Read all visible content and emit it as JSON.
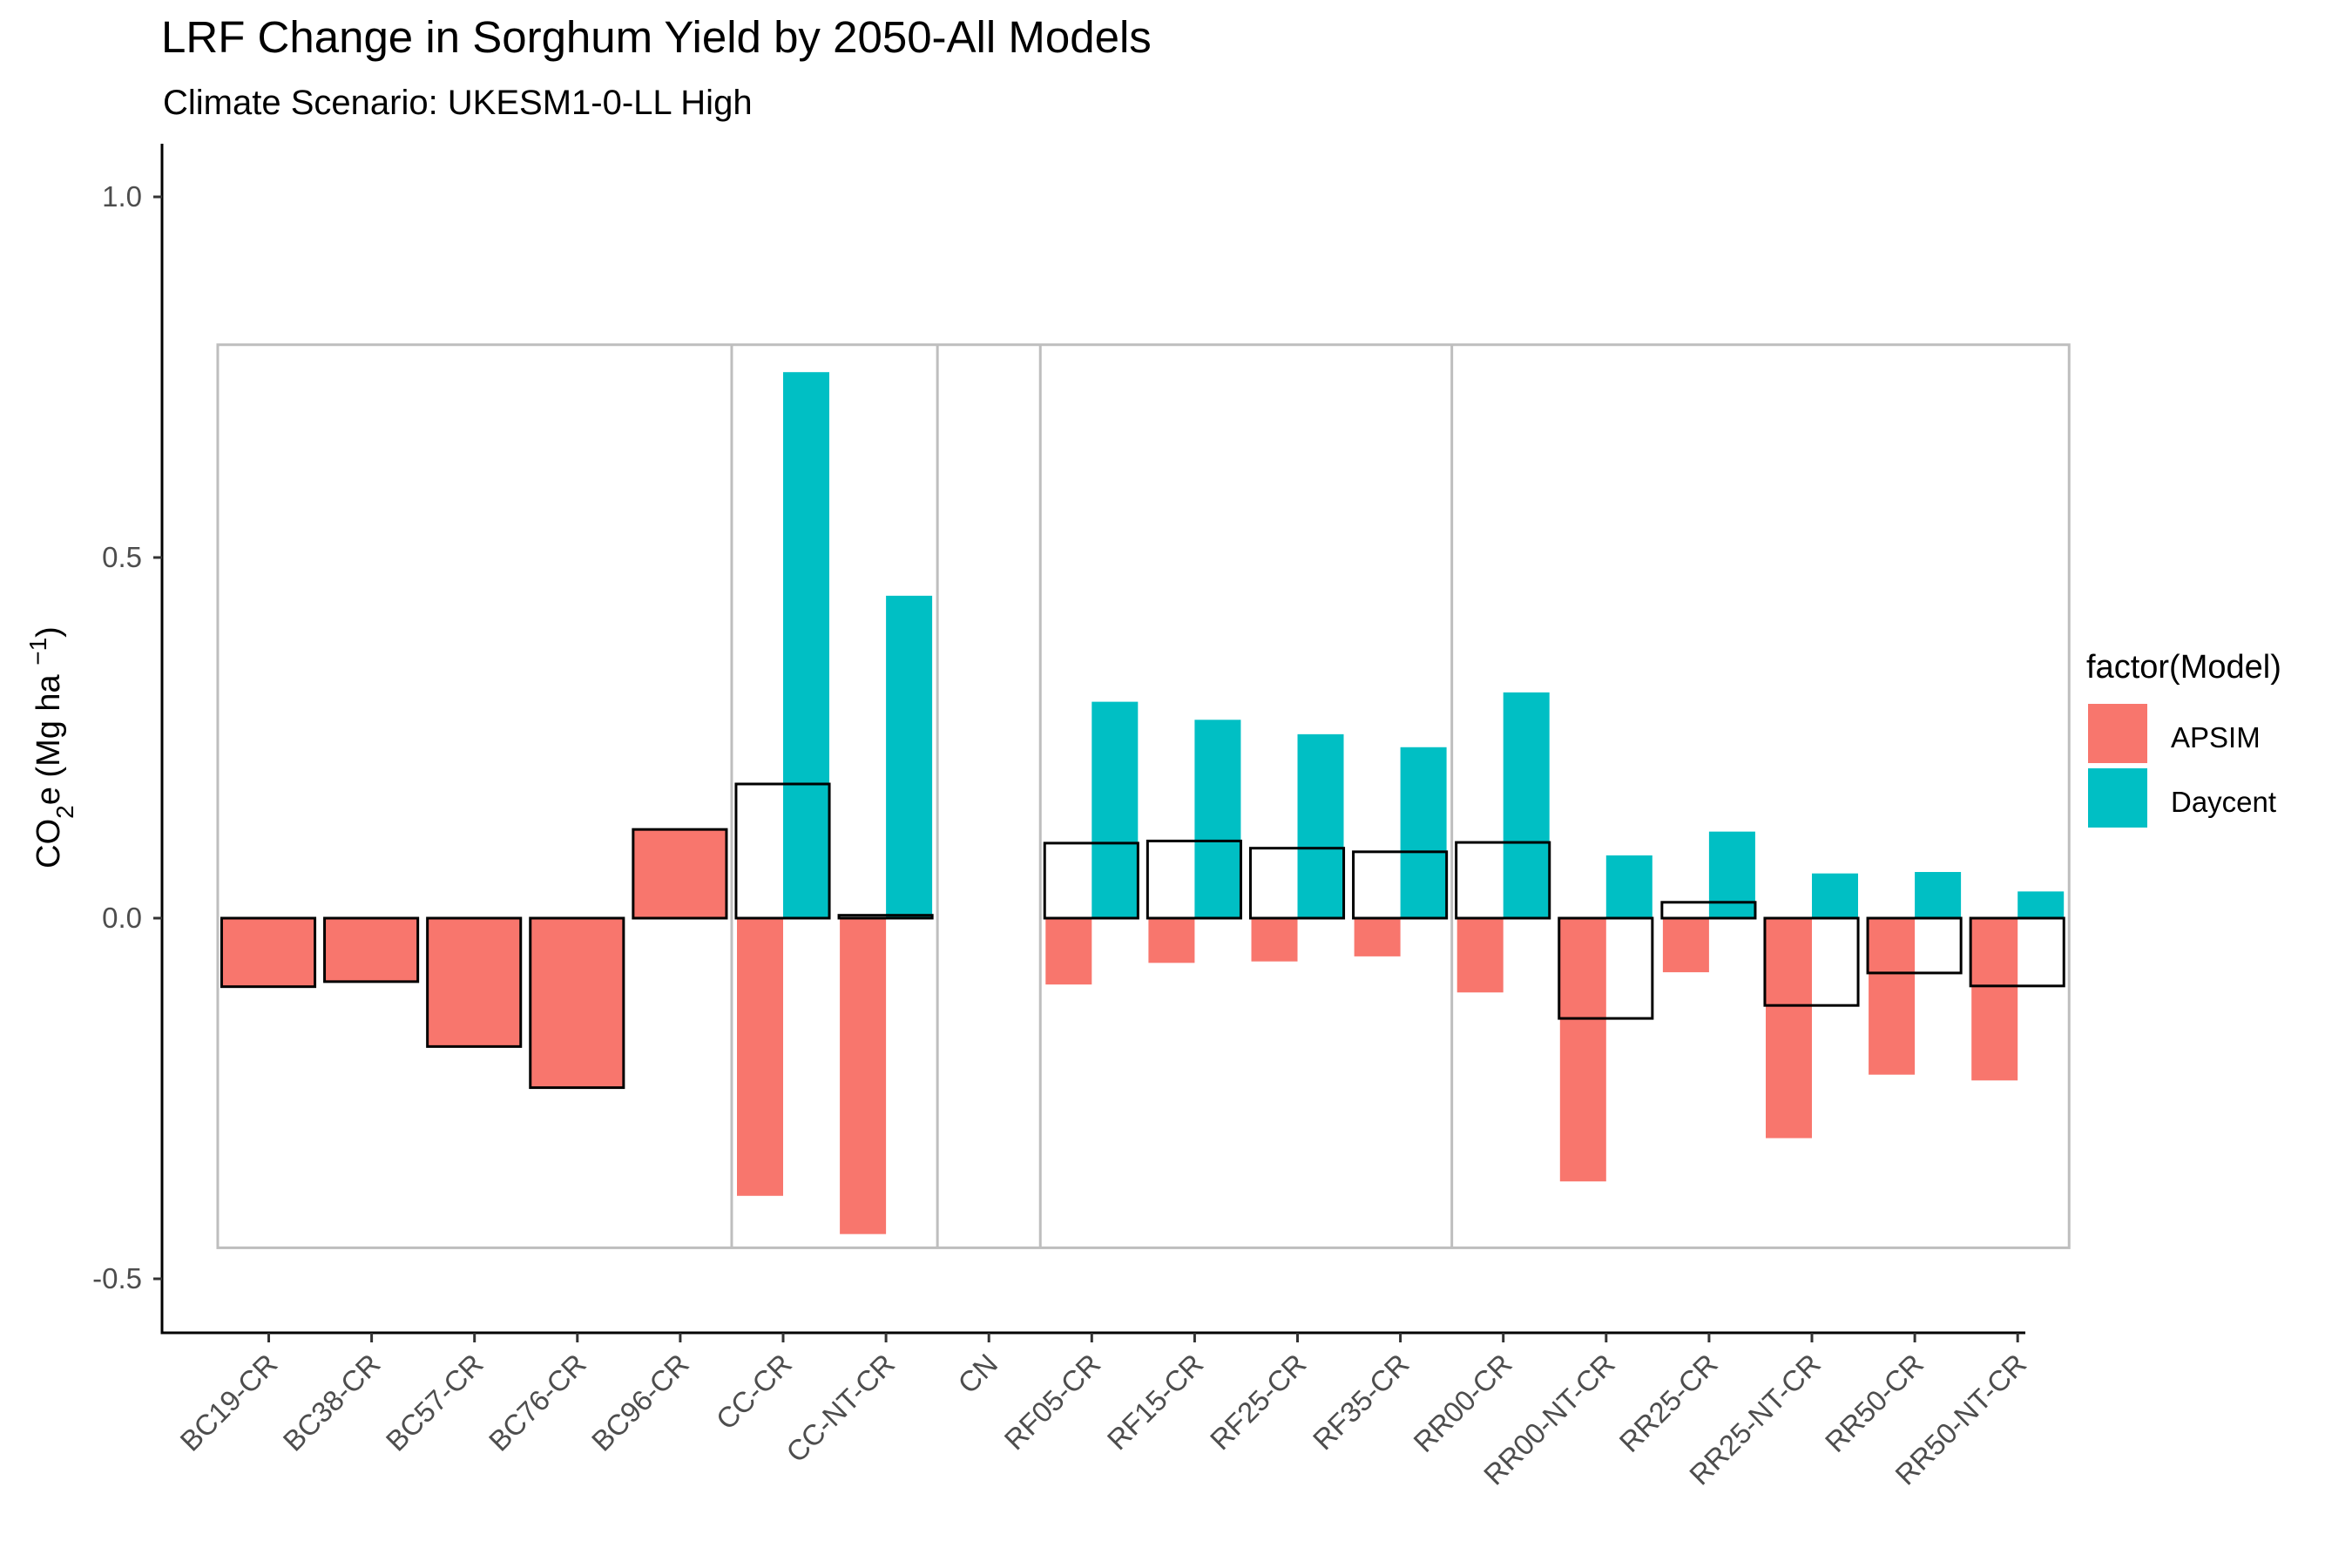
{
  "chart_data": {
    "type": "bar",
    "title": "LRF Change in Sorghum Yield by 2050-All Models",
    "subtitle": "Climate Scenario: UKESM1-0-LL High",
    "ylabel": {
      "prefix": "CO",
      "sub": "2",
      "mid": "e (Mg ha ",
      "sup": "−1",
      "suffix": ")"
    },
    "ylim": [
      -0.56,
      1.07
    ],
    "yticks": [
      1.0,
      0.5,
      0.0,
      -0.5
    ],
    "ytick_labels": [
      "1.0",
      "0.5",
      "0.0",
      "-0.5"
    ],
    "grid": false,
    "legend_position": "right",
    "legend_title": "factor(Model)",
    "categories": [
      "BC19-CR",
      "BC38-CR",
      "BC57-CR",
      "BC76-CR",
      "BC96-CR",
      "CC-CR",
      "CC-NT-CR",
      "CN",
      "RF05-CR",
      "RF15-CR",
      "RF25-CR",
      "RF35-CR",
      "RR00-CR",
      "RR00-NT-CR",
      "RR25-CR",
      "RR25-NT-CR",
      "RR50-CR",
      "RR50-NT-CR"
    ],
    "series": [
      {
        "name": "APSIM",
        "color": "#F8766D",
        "values": [
          -0.095,
          -0.088,
          -0.178,
          -0.235,
          0.123,
          -0.385,
          -0.438,
          null,
          -0.092,
          -0.062,
          -0.06,
          -0.053,
          -0.103,
          -0.365,
          -0.075,
          -0.305,
          -0.217,
          -0.225
        ]
      },
      {
        "name": "Daycent",
        "color": "#00BFC4",
        "values": [
          null,
          null,
          null,
          null,
          null,
          0.757,
          0.447,
          null,
          0.3,
          0.275,
          0.255,
          0.237,
          0.313,
          0.087,
          0.12,
          0.062,
          0.064,
          0.037
        ]
      }
    ],
    "mean_outline": {
      "values": [
        -0.095,
        -0.088,
        -0.178,
        -0.235,
        0.123,
        0.186,
        0.004,
        null,
        0.104,
        0.107,
        0.097,
        0.092,
        0.105,
        -0.139,
        0.022,
        -0.121,
        -0.076,
        -0.094
      ],
      "stroke": "#000000"
    },
    "group_boxes": {
      "ymin": -0.457,
      "ymax": 0.795,
      "stroke": "#BEBEBE",
      "divider_after_category_index": [
        4,
        6,
        7,
        11
      ]
    }
  }
}
